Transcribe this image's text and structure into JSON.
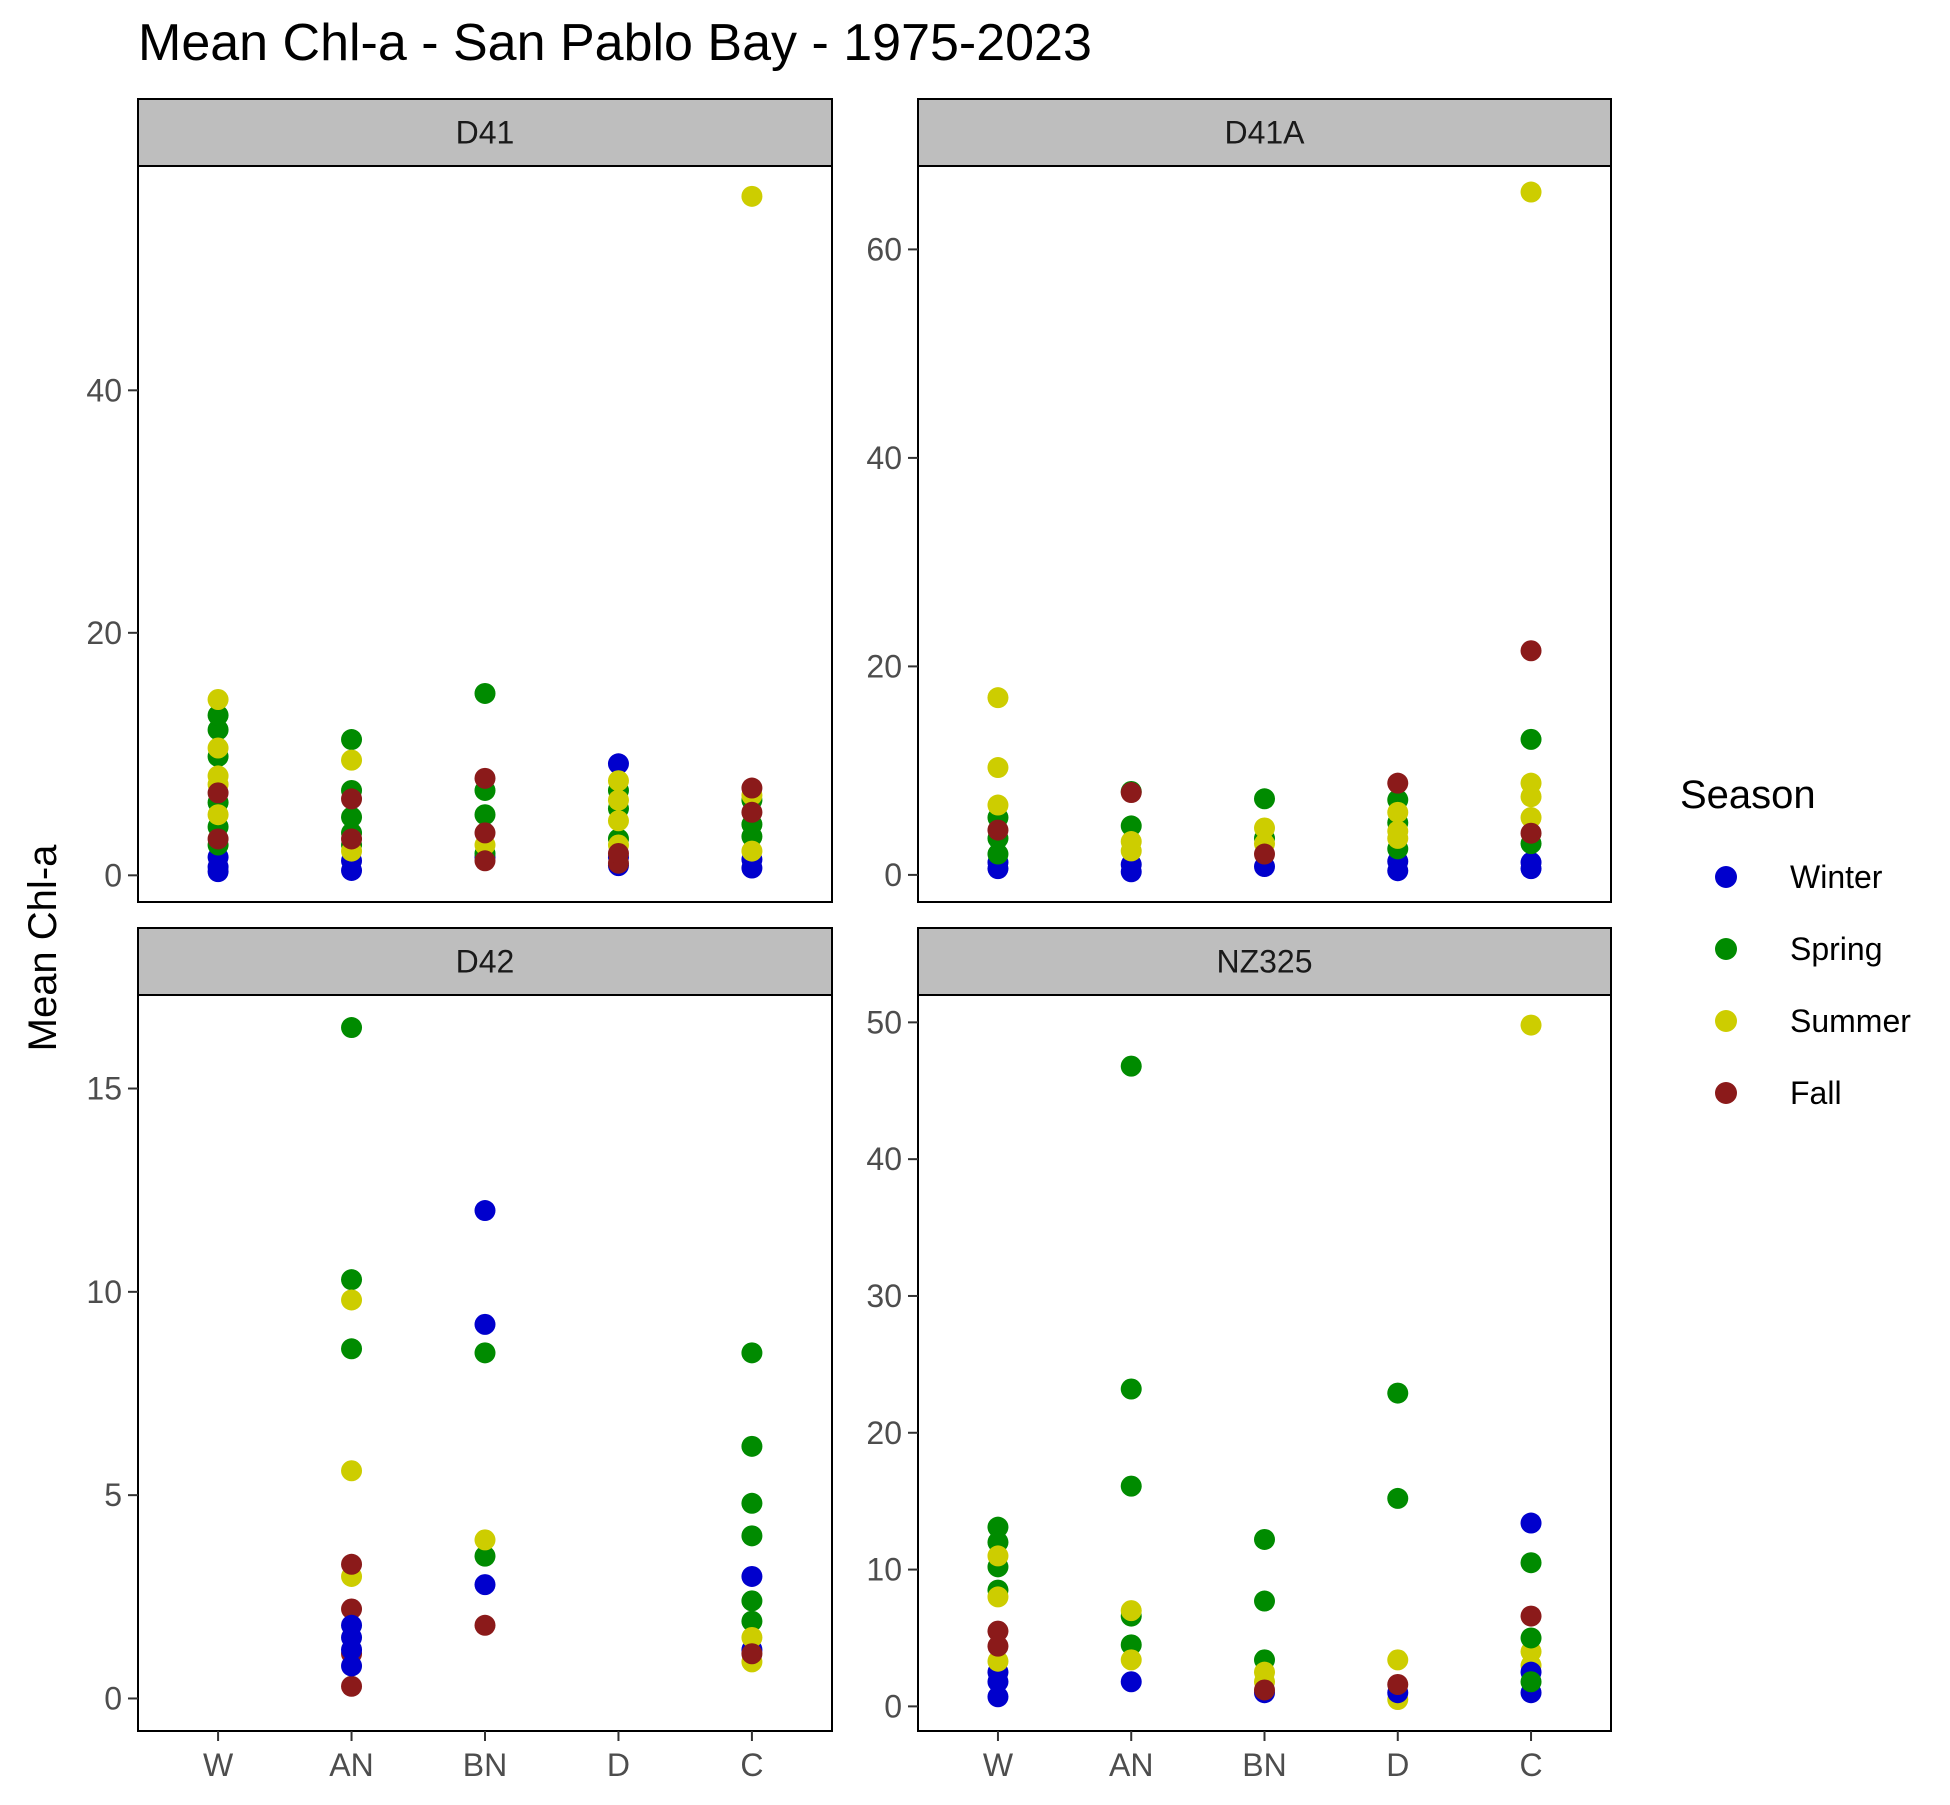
{
  "chart_data": {
    "type": "scatter",
    "title": "Mean Chl-a - San Pablo Bay - 1975-2023",
    "ylabel": "Mean Chl-a",
    "xlabel": "",
    "categories": [
      "W",
      "AN",
      "BN",
      "D",
      "C"
    ],
    "legend": {
      "title": "Season",
      "placement": "right",
      "entries": [
        {
          "name": "Winter",
          "color": "#0000cd"
        },
        {
          "name": "Spring",
          "color": "#008b00"
        },
        {
          "name": "Summer",
          "color": "#cdcd00"
        },
        {
          "name": "Fall",
          "color": "#8b1a1a"
        }
      ]
    },
    "panels": [
      {
        "name": "D41",
        "ylim": [
          -2.2,
          58.5
        ],
        "yticks": [
          0,
          20,
          40
        ],
        "points": [
          {
            "x": "W",
            "season": "Winter",
            "y": 0.3
          },
          {
            "x": "W",
            "season": "Winter",
            "y": 0.7
          },
          {
            "x": "W",
            "season": "Winter",
            "y": 1.5
          },
          {
            "x": "W",
            "season": "Spring",
            "y": 2.5
          },
          {
            "x": "W",
            "season": "Spring",
            "y": 4.0
          },
          {
            "x": "W",
            "season": "Spring",
            "y": 6.0
          },
          {
            "x": "W",
            "season": "Spring",
            "y": 9.8
          },
          {
            "x": "W",
            "season": "Spring",
            "y": 12.0
          },
          {
            "x": "W",
            "season": "Spring",
            "y": 13.2
          },
          {
            "x": "W",
            "season": "Summer",
            "y": 5.0
          },
          {
            "x": "W",
            "season": "Summer",
            "y": 7.5
          },
          {
            "x": "W",
            "season": "Summer",
            "y": 10.5
          },
          {
            "x": "W",
            "season": "Summer",
            "y": 14.5
          },
          {
            "x": "W",
            "season": "Summer",
            "y": 8.2
          },
          {
            "x": "W",
            "season": "Fall",
            "y": 3.0
          },
          {
            "x": "W",
            "season": "Fall",
            "y": 6.8
          },
          {
            "x": "AN",
            "season": "Winter",
            "y": 0.4
          },
          {
            "x": "AN",
            "season": "Winter",
            "y": 1.2
          },
          {
            "x": "AN",
            "season": "Spring",
            "y": 3.5
          },
          {
            "x": "AN",
            "season": "Spring",
            "y": 4.8
          },
          {
            "x": "AN",
            "season": "Spring",
            "y": 7.0
          },
          {
            "x": "AN",
            "season": "Spring",
            "y": 11.2
          },
          {
            "x": "AN",
            "season": "Spring",
            "y": 2.5
          },
          {
            "x": "AN",
            "season": "Summer",
            "y": 9.5
          },
          {
            "x": "AN",
            "season": "Summer",
            "y": 2.0
          },
          {
            "x": "AN",
            "season": "Fall",
            "y": 3.0
          },
          {
            "x": "AN",
            "season": "Fall",
            "y": 6.3
          },
          {
            "x": "BN",
            "season": "Winter",
            "y": 1.5
          },
          {
            "x": "BN",
            "season": "Spring",
            "y": 1.8
          },
          {
            "x": "BN",
            "season": "Spring",
            "y": 5.0
          },
          {
            "x": "BN",
            "season": "Spring",
            "y": 7.0
          },
          {
            "x": "BN",
            "season": "Spring",
            "y": 15.0
          },
          {
            "x": "BN",
            "season": "Summer",
            "y": 2.5
          },
          {
            "x": "BN",
            "season": "Fall",
            "y": 1.2
          },
          {
            "x": "BN",
            "season": "Fall",
            "y": 3.5
          },
          {
            "x": "BN",
            "season": "Fall",
            "y": 8.0
          },
          {
            "x": "D",
            "season": "Winter",
            "y": 0.8
          },
          {
            "x": "D",
            "season": "Winter",
            "y": 1.5
          },
          {
            "x": "D",
            "season": "Winter",
            "y": 9.2
          },
          {
            "x": "D",
            "season": "Spring",
            "y": 3.0
          },
          {
            "x": "D",
            "season": "Spring",
            "y": 5.5
          },
          {
            "x": "D",
            "season": "Spring",
            "y": 7.0
          },
          {
            "x": "D",
            "season": "Summer",
            "y": 2.5
          },
          {
            "x": "D",
            "season": "Summer",
            "y": 4.5
          },
          {
            "x": "D",
            "season": "Summer",
            "y": 6.2
          },
          {
            "x": "D",
            "season": "Summer",
            "y": 7.8
          },
          {
            "x": "D",
            "season": "Fall",
            "y": 1.0
          },
          {
            "x": "D",
            "season": "Fall",
            "y": 1.8
          },
          {
            "x": "C",
            "season": "Winter",
            "y": 0.6
          },
          {
            "x": "C",
            "season": "Winter",
            "y": 1.3
          },
          {
            "x": "C",
            "season": "Spring",
            "y": 3.2
          },
          {
            "x": "C",
            "season": "Spring",
            "y": 4.2
          },
          {
            "x": "C",
            "season": "Spring",
            "y": 6.2
          },
          {
            "x": "C",
            "season": "Summer",
            "y": 2.0
          },
          {
            "x": "C",
            "season": "Summer",
            "y": 6.6
          },
          {
            "x": "C",
            "season": "Summer",
            "y": 56.0
          },
          {
            "x": "C",
            "season": "Fall",
            "y": 5.2
          },
          {
            "x": "C",
            "season": "Fall",
            "y": 7.2
          }
        ]
      },
      {
        "name": "D41A",
        "ylim": [
          -2.6,
          68.0
        ],
        "yticks": [
          0,
          20,
          40,
          60
        ],
        "points": [
          {
            "x": "W",
            "season": "Winter",
            "y": 0.6
          },
          {
            "x": "W",
            "season": "Winter",
            "y": 1.2
          },
          {
            "x": "W",
            "season": "Spring",
            "y": 2.0
          },
          {
            "x": "W",
            "season": "Spring",
            "y": 3.5
          },
          {
            "x": "W",
            "season": "Spring",
            "y": 5.5
          },
          {
            "x": "W",
            "season": "Summer",
            "y": 6.7
          },
          {
            "x": "W",
            "season": "Summer",
            "y": 10.3
          },
          {
            "x": "W",
            "season": "Summer",
            "y": 17.0
          },
          {
            "x": "W",
            "season": "Fall",
            "y": 4.3
          },
          {
            "x": "AN",
            "season": "Winter",
            "y": 0.3
          },
          {
            "x": "AN",
            "season": "Winter",
            "y": 1.0
          },
          {
            "x": "AN",
            "season": "Spring",
            "y": 4.7
          },
          {
            "x": "AN",
            "season": "Spring",
            "y": 8.0
          },
          {
            "x": "AN",
            "season": "Summer",
            "y": 2.3
          },
          {
            "x": "AN",
            "season": "Summer",
            "y": 3.2
          },
          {
            "x": "AN",
            "season": "Fall",
            "y": 7.9
          },
          {
            "x": "BN",
            "season": "Winter",
            "y": 0.8
          },
          {
            "x": "BN",
            "season": "Spring",
            "y": 3.5
          },
          {
            "x": "BN",
            "season": "Spring",
            "y": 7.3
          },
          {
            "x": "BN",
            "season": "Summer",
            "y": 3.0
          },
          {
            "x": "BN",
            "season": "Summer",
            "y": 4.5
          },
          {
            "x": "BN",
            "season": "Fall",
            "y": 2.0
          },
          {
            "x": "D",
            "season": "Winter",
            "y": 0.4
          },
          {
            "x": "D",
            "season": "Winter",
            "y": 1.3
          },
          {
            "x": "D",
            "season": "Spring",
            "y": 2.5
          },
          {
            "x": "D",
            "season": "Spring",
            "y": 5.0
          },
          {
            "x": "D",
            "season": "Spring",
            "y": 7.2
          },
          {
            "x": "D",
            "season": "Summer",
            "y": 3.5
          },
          {
            "x": "D",
            "season": "Summer",
            "y": 4.2
          },
          {
            "x": "D",
            "season": "Summer",
            "y": 6.0
          },
          {
            "x": "D",
            "season": "Fall",
            "y": 8.8
          },
          {
            "x": "C",
            "season": "Winter",
            "y": 0.6
          },
          {
            "x": "C",
            "season": "Winter",
            "y": 1.2
          },
          {
            "x": "C",
            "season": "Spring",
            "y": 3.0
          },
          {
            "x": "C",
            "season": "Spring",
            "y": 13.0
          },
          {
            "x": "C",
            "season": "Summer",
            "y": 5.5
          },
          {
            "x": "C",
            "season": "Summer",
            "y": 7.5
          },
          {
            "x": "C",
            "season": "Summer",
            "y": 8.8
          },
          {
            "x": "C",
            "season": "Summer",
            "y": 65.5
          },
          {
            "x": "C",
            "season": "Fall",
            "y": 4.0
          },
          {
            "x": "C",
            "season": "Fall",
            "y": 21.5
          }
        ]
      },
      {
        "name": "D42",
        "ylim": [
          -0.8,
          17.3
        ],
        "yticks": [
          0,
          5,
          10,
          15
        ],
        "points": [
          {
            "x": "AN",
            "season": "Spring",
            "y": 16.5
          },
          {
            "x": "AN",
            "season": "Spring",
            "y": 10.3
          },
          {
            "x": "AN",
            "season": "Spring",
            "y": 8.6
          },
          {
            "x": "AN",
            "season": "Summer",
            "y": 9.8
          },
          {
            "x": "AN",
            "season": "Summer",
            "y": 5.6
          },
          {
            "x": "AN",
            "season": "Summer",
            "y": 3.0
          },
          {
            "x": "AN",
            "season": "Fall",
            "y": 3.3
          },
          {
            "x": "AN",
            "season": "Fall",
            "y": 2.2
          },
          {
            "x": "AN",
            "season": "Fall",
            "y": 1.1
          },
          {
            "x": "AN",
            "season": "Fall",
            "y": 0.3
          },
          {
            "x": "AN",
            "season": "Winter",
            "y": 1.8
          },
          {
            "x": "AN",
            "season": "Winter",
            "y": 1.5
          },
          {
            "x": "AN",
            "season": "Winter",
            "y": 1.2
          },
          {
            "x": "AN",
            "season": "Winter",
            "y": 0.8
          },
          {
            "x": "BN",
            "season": "Winter",
            "y": 12.0
          },
          {
            "x": "BN",
            "season": "Winter",
            "y": 9.2
          },
          {
            "x": "BN",
            "season": "Winter",
            "y": 2.8
          },
          {
            "x": "BN",
            "season": "Spring",
            "y": 8.5
          },
          {
            "x": "BN",
            "season": "Spring",
            "y": 3.5
          },
          {
            "x": "BN",
            "season": "Summer",
            "y": 3.9
          },
          {
            "x": "BN",
            "season": "Fall",
            "y": 1.8
          },
          {
            "x": "C",
            "season": "Spring",
            "y": 8.5
          },
          {
            "x": "C",
            "season": "Spring",
            "y": 6.2
          },
          {
            "x": "C",
            "season": "Spring",
            "y": 4.8
          },
          {
            "x": "C",
            "season": "Spring",
            "y": 4.0
          },
          {
            "x": "C",
            "season": "Spring",
            "y": 2.4
          },
          {
            "x": "C",
            "season": "Spring",
            "y": 1.9
          },
          {
            "x": "C",
            "season": "Winter",
            "y": 3.0
          },
          {
            "x": "C",
            "season": "Winter",
            "y": 1.2
          },
          {
            "x": "C",
            "season": "Summer",
            "y": 1.5
          },
          {
            "x": "C",
            "season": "Summer",
            "y": 0.9
          },
          {
            "x": "C",
            "season": "Fall",
            "y": 1.1
          }
        ]
      },
      {
        "name": "NZ325",
        "ylim": [
          -1.8,
          52.0
        ],
        "yticks": [
          0,
          10,
          20,
          30,
          40,
          50
        ],
        "points": [
          {
            "x": "W",
            "season": "Winter",
            "y": 0.7
          },
          {
            "x": "W",
            "season": "Winter",
            "y": 1.8
          },
          {
            "x": "W",
            "season": "Winter",
            "y": 2.5
          },
          {
            "x": "W",
            "season": "Spring",
            "y": 13.1
          },
          {
            "x": "W",
            "season": "Spring",
            "y": 12.0
          },
          {
            "x": "W",
            "season": "Spring",
            "y": 10.2
          },
          {
            "x": "W",
            "season": "Spring",
            "y": 8.5
          },
          {
            "x": "W",
            "season": "Summer",
            "y": 11.0
          },
          {
            "x": "W",
            "season": "Summer",
            "y": 8.0
          },
          {
            "x": "W",
            "season": "Summer",
            "y": 3.3
          },
          {
            "x": "W",
            "season": "Fall",
            "y": 5.5
          },
          {
            "x": "W",
            "season": "Fall",
            "y": 4.4
          },
          {
            "x": "AN",
            "season": "Spring",
            "y": 46.8
          },
          {
            "x": "AN",
            "season": "Spring",
            "y": 23.2
          },
          {
            "x": "AN",
            "season": "Spring",
            "y": 16.1
          },
          {
            "x": "AN",
            "season": "Spring",
            "y": 6.6
          },
          {
            "x": "AN",
            "season": "Spring",
            "y": 4.5
          },
          {
            "x": "AN",
            "season": "Summer",
            "y": 7.0
          },
          {
            "x": "AN",
            "season": "Summer",
            "y": 3.4
          },
          {
            "x": "AN",
            "season": "Winter",
            "y": 1.8
          },
          {
            "x": "BN",
            "season": "Spring",
            "y": 12.2
          },
          {
            "x": "BN",
            "season": "Spring",
            "y": 7.7
          },
          {
            "x": "BN",
            "season": "Spring",
            "y": 3.4
          },
          {
            "x": "BN",
            "season": "Summer",
            "y": 2.5
          },
          {
            "x": "BN",
            "season": "Summer",
            "y": 1.8
          },
          {
            "x": "BN",
            "season": "Winter",
            "y": 1.0
          },
          {
            "x": "BN",
            "season": "Fall",
            "y": 1.2
          },
          {
            "x": "D",
            "season": "Spring",
            "y": 22.9
          },
          {
            "x": "D",
            "season": "Spring",
            "y": 15.2
          },
          {
            "x": "D",
            "season": "Summer",
            "y": 3.4
          },
          {
            "x": "D",
            "season": "Summer",
            "y": 0.5
          },
          {
            "x": "D",
            "season": "Winter",
            "y": 1.0
          },
          {
            "x": "D",
            "season": "Fall",
            "y": 1.6
          },
          {
            "x": "C",
            "season": "Summer",
            "y": 49.8
          },
          {
            "x": "C",
            "season": "Summer",
            "y": 4.0
          },
          {
            "x": "C",
            "season": "Summer",
            "y": 3.0
          },
          {
            "x": "C",
            "season": "Winter",
            "y": 13.4
          },
          {
            "x": "C",
            "season": "Winter",
            "y": 2.5
          },
          {
            "x": "C",
            "season": "Winter",
            "y": 1.0
          },
          {
            "x": "C",
            "season": "Spring",
            "y": 10.5
          },
          {
            "x": "C",
            "season": "Spring",
            "y": 5.0
          },
          {
            "x": "C",
            "season": "Spring",
            "y": 1.8
          },
          {
            "x": "C",
            "season": "Fall",
            "y": 6.6
          }
        ]
      }
    ]
  }
}
